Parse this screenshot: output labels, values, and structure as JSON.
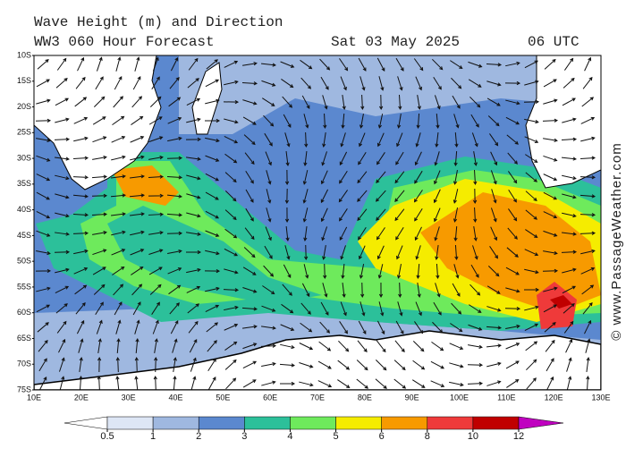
{
  "header": {
    "title": "Wave Height (m) and Direction",
    "model": "WW3 060 Hour Forecast",
    "date": "Sat 03 May 2025",
    "time": "06 UTC"
  },
  "map": {
    "lat_labels": [
      "10S",
      "15S",
      "20S",
      "25S",
      "30S",
      "35S",
      "40S",
      "45S",
      "50S",
      "55S",
      "60S",
      "65S",
      "70S",
      "75S"
    ],
    "lon_labels": [
      "10E",
      "20E",
      "30E",
      "40E",
      "50E",
      "60E",
      "70E",
      "80E",
      "90E",
      "100E",
      "110E",
      "120E",
      "130E"
    ]
  },
  "colorbar": {
    "ticks": [
      0.5,
      1,
      2,
      3,
      4,
      5,
      6,
      8,
      10,
      12
    ],
    "colors": [
      "#ffffff",
      "#dde6f5",
      "#9fb8e0",
      "#5b88cf",
      "#2cc09a",
      "#6eea5c",
      "#f5ec00",
      "#f79a00",
      "#ef3a3a",
      "#c00000",
      "#c000c0"
    ]
  },
  "watermark": "© www.PassageWeather.com"
}
